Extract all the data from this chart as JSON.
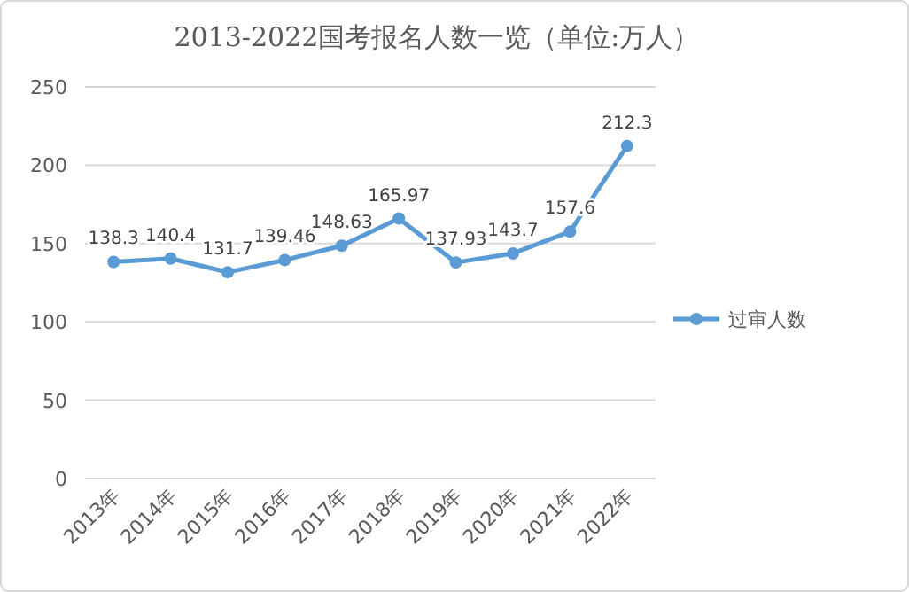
{
  "chart_data": {
    "type": "line",
    "title": "2013-2022国考报名人数一览（单位:万人）",
    "categories": [
      "2013年",
      "2014年",
      "2015年",
      "2016年",
      "2017年",
      "2018年",
      "2019年",
      "2020年",
      "2021年",
      "2022年"
    ],
    "series": [
      {
        "name": "过审人数",
        "color": "#5b9bd5",
        "values": [
          138.3,
          140.4,
          131.7,
          139.46,
          148.63,
          165.97,
          137.93,
          143.7,
          157.6,
          212.3
        ]
      }
    ],
    "ylim": [
      0,
      250
    ],
    "yticks": [
      0,
      50,
      100,
      150,
      200,
      250
    ],
    "grid": "y",
    "legend": "right",
    "marker": "circle",
    "data_labels": true
  }
}
